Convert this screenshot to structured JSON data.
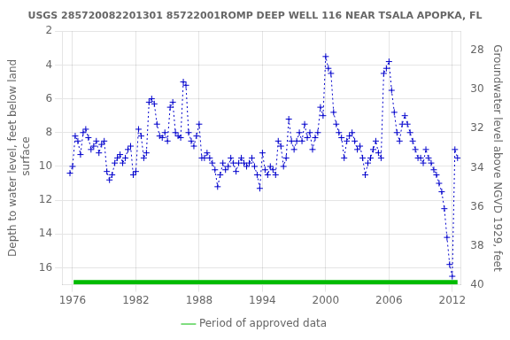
{
  "chart_data": {
    "type": "line",
    "title": "USGS 285720082201301 85722001ROMP DEEP WELL 116 NEAR TSALA APOPKA, FL",
    "ylabel": "Depth to water level, feet below land\n surface",
    "y2label": "Groundwater level above NGVD 1929, feet",
    "xlim": [
      1975.0,
      2012.8
    ],
    "xticks": [
      1976,
      1982,
      1988,
      1994,
      2000,
      2006,
      2012
    ],
    "ylim": [
      17,
      2
    ],
    "yticks": [
      2,
      4,
      6,
      8,
      10,
      12,
      14,
      16
    ],
    "y2lim": [
      40,
      27
    ],
    "y2ticks": [
      40,
      38,
      36,
      34,
      32,
      30,
      28
    ],
    "grid": true,
    "legend": "bottom",
    "x": [
      1975.75,
      1976.0,
      1976.25,
      1976.5,
      1976.75,
      1977.0,
      1977.25,
      1977.5,
      1977.75,
      1978.0,
      1978.25,
      1978.5,
      1978.75,
      1979.0,
      1979.25,
      1979.5,
      1979.75,
      1980.0,
      1980.25,
      1980.5,
      1980.75,
      1981.0,
      1981.25,
      1981.5,
      1981.75,
      1982.0,
      1982.25,
      1982.5,
      1982.75,
      1983.0,
      1983.25,
      1983.5,
      1983.75,
      1984.0,
      1984.25,
      1984.5,
      1984.75,
      1985.0,
      1985.25,
      1985.5,
      1985.75,
      1986.0,
      1986.25,
      1986.5,
      1986.75,
      1987.0,
      1987.25,
      1987.5,
      1987.75,
      1988.0,
      1988.25,
      1988.5,
      1988.75,
      1989.0,
      1989.25,
      1989.5,
      1989.75,
      1990.0,
      1990.25,
      1990.5,
      1990.75,
      1991.0,
      1991.25,
      1991.5,
      1991.75,
      1992.0,
      1992.25,
      1992.5,
      1992.75,
      1993.0,
      1993.25,
      1993.5,
      1993.75,
      1994.0,
      1994.25,
      1994.5,
      1994.75,
      1995.0,
      1995.25,
      1995.5,
      1995.75,
      1996.0,
      1996.25,
      1996.5,
      1996.75,
      1997.0,
      1997.25,
      1997.5,
      1997.75,
      1998.0,
      1998.25,
      1998.5,
      1998.75,
      1999.0,
      1999.25,
      1999.5,
      1999.75,
      2000.0,
      2000.25,
      2000.5,
      2000.75,
      2001.0,
      2001.25,
      2001.5,
      2001.75,
      2002.0,
      2002.25,
      2002.5,
      2002.75,
      2003.0,
      2003.25,
      2003.5,
      2003.75,
      2004.0,
      2004.25,
      2004.5,
      2004.75,
      2005.0,
      2005.25,
      2005.5,
      2005.75,
      2006.0,
      2006.25,
      2006.5,
      2006.75,
      2007.0,
      2007.25,
      2007.5,
      2007.75,
      2008.0,
      2008.25,
      2008.5,
      2008.75,
      2009.0,
      2009.25,
      2009.5,
      2009.75,
      2010.0,
      2010.25,
      2010.5,
      2010.75,
      2011.0,
      2011.25,
      2011.5,
      2011.75,
      2012.0,
      2012.25,
      2012.5
    ],
    "series": [
      {
        "color": "#0000cc",
        "marker": "+",
        "line_style": "dotted",
        "values": [
          10.4,
          10.0,
          8.2,
          8.5,
          9.3,
          8.0,
          7.8,
          8.3,
          9.0,
          8.8,
          8.5,
          9.2,
          8.7,
          8.5,
          10.3,
          10.8,
          10.5,
          9.8,
          9.5,
          9.3,
          9.8,
          9.5,
          9.0,
          8.8,
          10.5,
          10.3,
          7.8,
          8.2,
          9.5,
          9.2,
          6.2,
          6.0,
          6.3,
          7.5,
          8.2,
          8.3,
          8.0,
          8.5,
          6.5,
          6.2,
          8.0,
          8.2,
          8.3,
          5.0,
          5.2,
          8.0,
          8.5,
          8.8,
          8.2,
          7.5,
          9.5,
          9.5,
          9.2,
          9.5,
          9.8,
          10.2,
          11.2,
          10.5,
          9.8,
          10.2,
          10.0,
          9.5,
          9.8,
          10.3,
          9.8,
          9.5,
          9.8,
          10.0,
          9.8,
          9.5,
          10.0,
          10.5,
          11.3,
          9.2,
          10.2,
          10.5,
          10.0,
          10.2,
          10.5,
          8.5,
          8.8,
          10.0,
          9.5,
          7.2,
          8.5,
          9.0,
          8.5,
          8.0,
          8.5,
          7.5,
          8.3,
          8.0,
          9.0,
          8.3,
          8.0,
          6.5,
          7.0,
          3.5,
          4.2,
          4.5,
          6.8,
          7.5,
          8.0,
          8.3,
          9.5,
          8.5,
          8.2,
          8.0,
          8.5,
          9.0,
          8.8,
          9.5,
          10.5,
          9.8,
          9.5,
          9.0,
          8.5,
          9.2,
          9.5,
          4.5,
          4.2,
          3.8,
          5.5,
          6.8,
          8.0,
          8.5,
          7.5,
          7.0,
          7.5,
          8.0,
          8.5,
          9.0,
          9.5,
          9.5,
          9.8,
          9.0,
          9.5,
          9.8,
          10.2,
          10.5,
          11.0,
          11.5,
          12.5,
          14.2,
          15.8,
          16.5,
          9.0,
          9.5
        ]
      },
      {
        "name": "Period of approved data",
        "color": "#00bb00",
        "line_style": "solid",
        "x": [
          1976.1,
          2012.5
        ],
        "values": [
          16.85,
          16.85
        ]
      }
    ]
  }
}
